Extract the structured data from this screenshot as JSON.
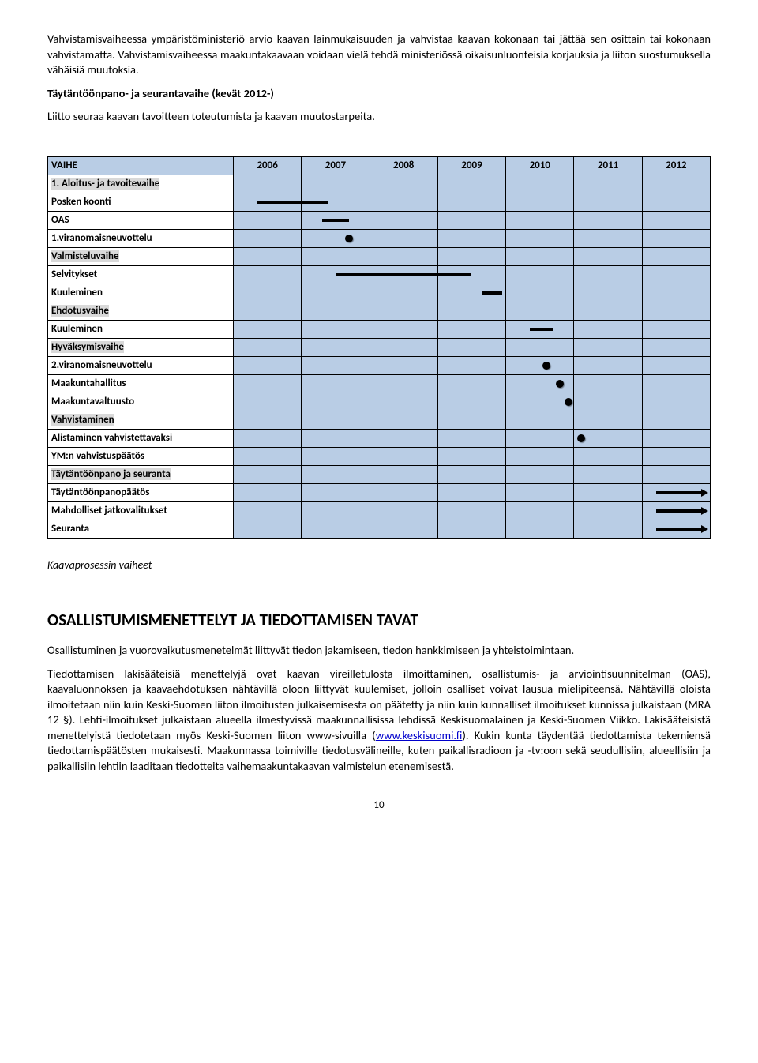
{
  "intro": {
    "p1": "Vahvistamisvaiheessa ympäristöministeriö arvio kaavan lainmukaisuuden ja vahvistaa kaavan kokonaan tai jättää sen osittain tai kokonaan vahvistamatta. Vahvistamisvaiheessa maakuntakaavaan voidaan vielä tehdä ministeriössä oikaisunluonteisia korjauksia ja liiton suostumuksella vähäisiä muutoksia.",
    "h1": "Täytäntöönpano- ja seurantavaihe (kevät 2012-)",
    "p2": "Liitto seuraa kaavan tavoitteen toteutumista ja kaavan muutostarpeita."
  },
  "table": {
    "headers": [
      "VAIHE",
      "2006",
      "2007",
      "2008",
      "2009",
      "2010",
      "2011",
      "2012"
    ],
    "rows": [
      {
        "label": "1. Aloitus- ja tavoitevaihe",
        "hl": true,
        "bold": true
      },
      {
        "label": "Posken koonti",
        "bold": true,
        "bars": [
          {
            "col": 1,
            "from": 35,
            "to": 100
          },
          {
            "col": 2,
            "from": 0,
            "to": 40
          }
        ]
      },
      {
        "label": "OAS",
        "bold": true,
        "bars": [
          {
            "col": 2,
            "from": 30,
            "to": 70
          }
        ]
      },
      {
        "label": "1.viranomaisneuvottelu",
        "bold": true,
        "dots": [
          {
            "col": 2,
            "pos": 70
          }
        ]
      },
      {
        "label": "Valmisteluvaihe",
        "hl": true,
        "bold": true
      },
      {
        "label": "Selvitykset",
        "bold": true,
        "bars": [
          {
            "col": 2,
            "from": 50,
            "to": 100
          },
          {
            "col": 3,
            "from": 0,
            "to": 100
          },
          {
            "col": 4,
            "from": 0,
            "to": 50
          }
        ]
      },
      {
        "label": "Kuuleminen",
        "bold": true,
        "bars": [
          {
            "col": 4,
            "from": 65,
            "to": 95
          }
        ]
      },
      {
        "label": "Ehdotusvaihe",
        "hl": true,
        "bold": true
      },
      {
        "label": "Kuuleminen",
        "bold": true,
        "bars": [
          {
            "col": 5,
            "from": 35,
            "to": 70
          }
        ]
      },
      {
        "label": "Hyväksymisvaihe",
        "hl": true,
        "bold": true
      },
      {
        "label": "2.viranomaisneuvottelu",
        "bold": true,
        "dots": [
          {
            "col": 5,
            "pos": 60
          }
        ]
      },
      {
        "label": "Maakuntahallitus",
        "bold": true,
        "dots": [
          {
            "col": 5,
            "pos": 80
          }
        ]
      },
      {
        "label": "Maakuntavaltuusto",
        "bold": true,
        "dots": [
          {
            "col": 5,
            "pos": 92
          }
        ]
      },
      {
        "label": "Vahvistaminen",
        "hl": true,
        "bold": true
      },
      {
        "label": "Alistaminen vahvistettavaksi",
        "bold": true,
        "dots": [
          {
            "col": 6,
            "pos": 10
          }
        ]
      },
      {
        "label": "YM:n vahvistuspäätös",
        "bold": true
      },
      {
        "label": "Täytäntöönpano ja seuranta",
        "hl": true,
        "bold": true
      },
      {
        "label": "Täytäntöönpanopäätös",
        "bold": true,
        "arrows": [
          {
            "col": 7,
            "from": 20
          }
        ]
      },
      {
        "label": "Mahdolliset jatkovalitukset",
        "bold": true,
        "arrows": [
          {
            "col": 7,
            "from": 20
          }
        ]
      },
      {
        "label": "Seuranta",
        "bold": true,
        "arrows": [
          {
            "col": 7,
            "from": 20
          }
        ]
      }
    ]
  },
  "caption": "Kaavaprosessin vaiheet",
  "section": {
    "title": "OSALLISTUMISMENETTELYT JA TIEDOTTAMISEN TAVAT",
    "p1": "Osallistuminen ja vuorovaikutusmenetelmät liittyvät tiedon jakamiseen, tiedon hankkimiseen ja yhteistoimintaan.",
    "p2a": "Tiedottamisen lakisääteisiä menettelyjä ovat kaavan vireilletulosta ilmoittaminen, osallistumis- ja arviointisuunnitelman (OAS), kaavaluonnoksen ja kaavaehdotuksen nähtävillä oloon liittyvät kuulemiset, jolloin osalliset voivat lausua mielipiteensä. Nähtävillä oloista ilmoitetaan niin kuin Keski-Suomen liiton ilmoitusten julkaisemisesta on päätetty ja niin kuin kunnalliset ilmoitukset kunnissa julkaistaan (MRA 12 §). Lehti-ilmoitukset julkaistaan alueella ilmestyvissä maakunnallisissa lehdissä Keskisuomalainen ja Keski-Suomen Viikko. Lakisääteisistä menettelyistä tiedotetaan myös Keski-Suomen liiton www-sivuilla (",
    "link": "www.keskisuomi.fi",
    "p2b": "). Kukin kunta täydentää tiedottamista tekemiensä tiedottamispäätösten mukaisesti. Maakunnassa toimiville tiedotusvälineille, kuten paikallisradioon ja -tv:oon sekä seudullisiin, alueellisiin ja paikallisiin lehtiin laaditaan tiedotteita vaihemaakuntakaavan valmistelun etenemisestä."
  },
  "page": "10",
  "colors": {
    "cell_bg": "#b9cde5",
    "highlight_bg": "#d9d9d9",
    "border": "#000000"
  }
}
